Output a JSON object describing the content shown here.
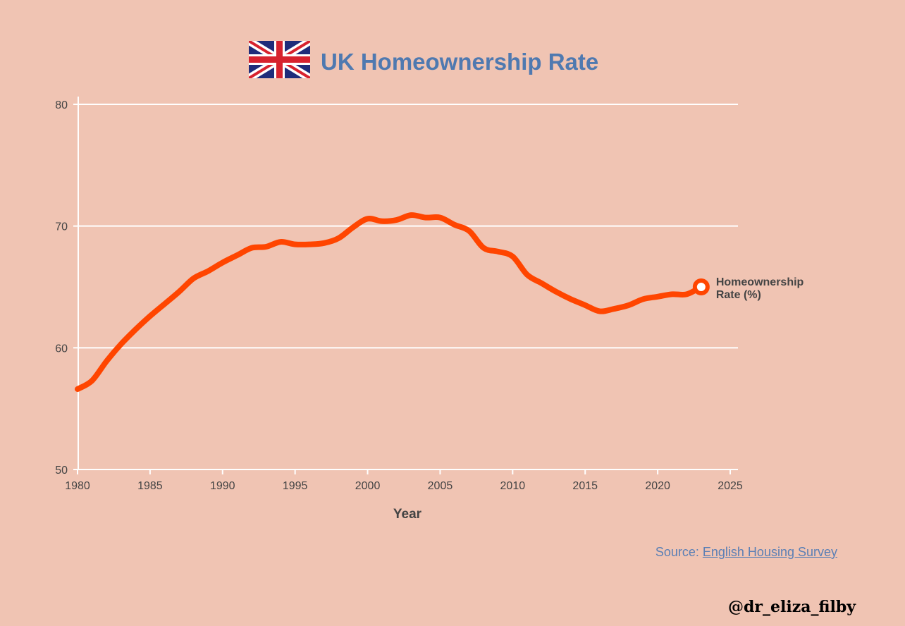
{
  "colors": {
    "background": "#F0C4B3",
    "title": "#4F79B0",
    "line": "#FF4500",
    "grid": "#FFFFFF",
    "text": "#444444",
    "link": "#5A7FB5"
  },
  "title_icon": "uk-flag-icon",
  "source": {
    "prefix": "Source: ",
    "link_text": "English Housing Survey"
  },
  "handle": "@dr_eliza_filby",
  "chart_data": {
    "type": "line",
    "title": "UK Homeownership Rate",
    "xlabel": "Year",
    "ylabel": "",
    "xlim": [
      1980,
      2025
    ],
    "ylim": [
      50,
      80
    ],
    "xticks": [
      1980,
      1985,
      1990,
      1995,
      2000,
      2005,
      2010,
      2015,
      2020,
      2025
    ],
    "yticks": [
      50,
      60,
      70,
      80
    ],
    "grid": "horizontal",
    "series": [
      {
        "name": "Homeownership Rate (%)",
        "label_lines": [
          "Homeownership",
          "Rate (%)"
        ],
        "x": [
          1980,
          1981,
          1982,
          1983,
          1984,
          1985,
          1986,
          1987,
          1988,
          1989,
          1990,
          1991,
          1992,
          1993,
          1994,
          1995,
          1996,
          1997,
          1998,
          1999,
          2000,
          2001,
          2002,
          2003,
          2004,
          2005,
          2006,
          2007,
          2008,
          2009,
          2010,
          2011,
          2012,
          2013,
          2014,
          2015,
          2016,
          2017,
          2018,
          2019,
          2020,
          2021,
          2022,
          2023
        ],
        "y": [
          56.6,
          57.3,
          58.9,
          60.3,
          61.5,
          62.6,
          63.6,
          64.6,
          65.7,
          66.3,
          67.0,
          67.6,
          68.2,
          68.3,
          68.7,
          68.5,
          68.5,
          68.6,
          69.0,
          69.9,
          70.6,
          70.4,
          70.5,
          70.9,
          70.7,
          70.7,
          70.1,
          69.6,
          68.2,
          67.9,
          67.5,
          66.0,
          65.3,
          64.6,
          64.0,
          63.5,
          63.0,
          63.2,
          63.5,
          64.0,
          64.2,
          64.4,
          64.4,
          65.0
        ]
      }
    ]
  }
}
